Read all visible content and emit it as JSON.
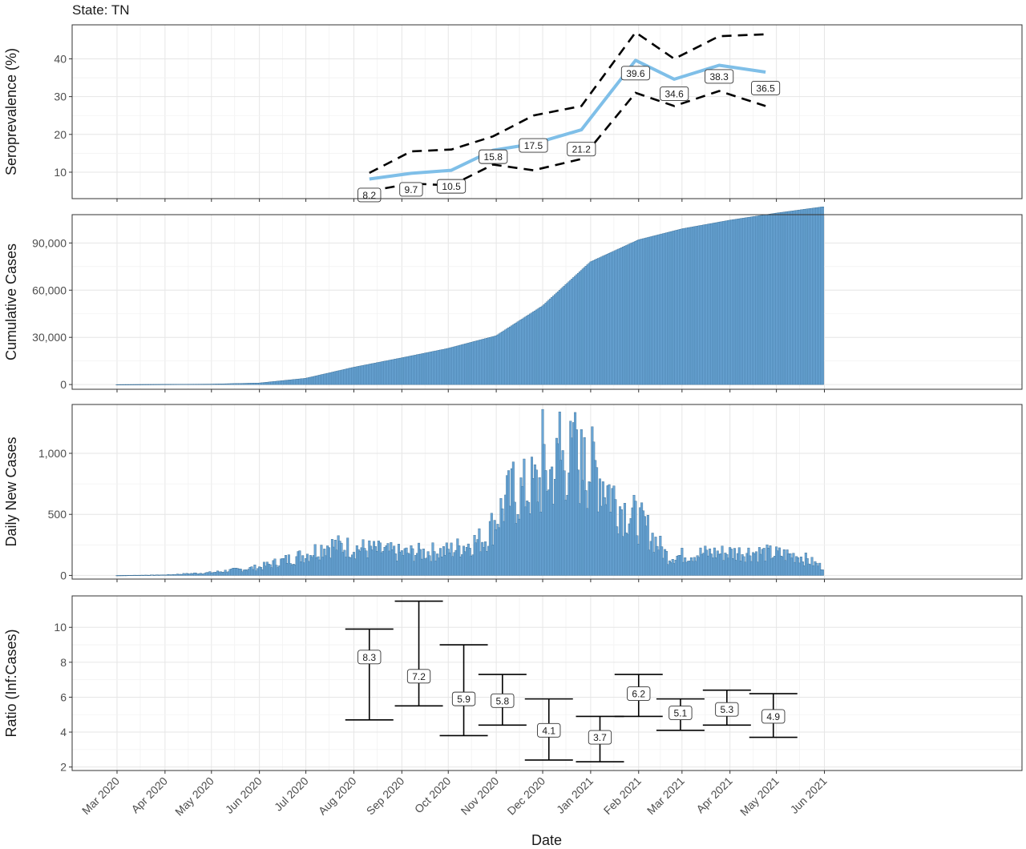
{
  "figure": {
    "state_label": "State: TN",
    "xlabel": "Date",
    "x_ticks": [
      "Mar 2020",
      "Apr 2020",
      "May 2020",
      "Jun 2020",
      "Jul 2020",
      "Aug 2020",
      "Sep 2020",
      "Oct 2020",
      "Nov 2020",
      "Dec 2020",
      "Jan 2021",
      "Feb 2021",
      "Mar 2021",
      "Apr 2021",
      "May 2021",
      "Jun 2021"
    ]
  },
  "chart_data": [
    {
      "type": "line",
      "ylabel": "Seroprevalence (%)",
      "y_ticks": [
        10,
        20,
        30,
        40
      ],
      "ylim": [
        3,
        49
      ],
      "series": [
        {
          "color": "#7fbfe8",
          "points": [
            {
              "date": "2020-08-11",
              "value": 8.2
            },
            {
              "date": "2020-09-07",
              "value": 9.7
            },
            {
              "date": "2020-10-03",
              "value": 10.5
            },
            {
              "date": "2020-10-30",
              "value": 15.8
            },
            {
              "date": "2020-11-25",
              "value": 17.5
            },
            {
              "date": "2020-12-26",
              "value": 21.2
            },
            {
              "date": "2021-01-30",
              "value": 39.6
            },
            {
              "date": "2021-02-24",
              "value": 34.6
            },
            {
              "date": "2021-03-25",
              "value": 38.3
            },
            {
              "date": "2021-04-24",
              "value": 36.5
            }
          ]
        }
      ],
      "upper": [
        9.8,
        15.5,
        16.0,
        19.5,
        25.0,
        27.5,
        47.0,
        40.0,
        46.0,
        46.5
      ],
      "lower": [
        5.0,
        7.0,
        6.5,
        12.0,
        10.5,
        13.5,
        31.0,
        27.5,
        31.5,
        27.5
      ]
    },
    {
      "type": "bar",
      "ylabel": "Cumulative Cases",
      "y_ticks": [
        "0",
        "30,000",
        "60,000",
        "90,000"
      ],
      "y_tick_values": [
        0,
        30000,
        60000,
        90000
      ],
      "ylim": [
        -3000,
        108000
      ],
      "color": "#6aa6d6",
      "date_range": [
        "2020-03-01",
        "2021-05-31"
      ],
      "anchors": [
        {
          "date": "2020-03-01",
          "value": 0
        },
        {
          "date": "2020-05-01",
          "value": 300
        },
        {
          "date": "2020-06-01",
          "value": 1000
        },
        {
          "date": "2020-07-01",
          "value": 4000
        },
        {
          "date": "2020-08-01",
          "value": 11000
        },
        {
          "date": "2020-09-01",
          "value": 17000
        },
        {
          "date": "2020-10-01",
          "value": 23000
        },
        {
          "date": "2020-11-01",
          "value": 31000
        },
        {
          "date": "2020-12-01",
          "value": 50000
        },
        {
          "date": "2021-01-01",
          "value": 78000
        },
        {
          "date": "2021-02-01",
          "value": 92000
        },
        {
          "date": "2021-03-01",
          "value": 99000
        },
        {
          "date": "2021-04-01",
          "value": 104500
        },
        {
          "date": "2021-05-01",
          "value": 109000
        },
        {
          "date": "2021-05-31",
          "value": 113000
        }
      ]
    },
    {
      "type": "bar",
      "ylabel": "Daily New Cases",
      "y_ticks": [
        "0",
        "500",
        "1,000"
      ],
      "y_tick_values": [
        0,
        500,
        1000
      ],
      "ylim": [
        -30,
        1400
      ],
      "color": "#6aa6d6",
      "date_range": [
        "2020-03-01",
        "2021-05-31"
      ],
      "anchors": [
        {
          "date": "2020-03-01",
          "value": 0
        },
        {
          "date": "2020-04-01",
          "value": 5
        },
        {
          "date": "2020-05-01",
          "value": 25
        },
        {
          "date": "2020-06-01",
          "value": 70
        },
        {
          "date": "2020-07-01",
          "value": 180
        },
        {
          "date": "2020-07-15",
          "value": 260
        },
        {
          "date": "2020-08-01",
          "value": 240
        },
        {
          "date": "2020-09-01",
          "value": 190
        },
        {
          "date": "2020-10-01",
          "value": 210
        },
        {
          "date": "2020-10-25",
          "value": 320
        },
        {
          "date": "2020-11-08",
          "value": 650
        },
        {
          "date": "2020-12-01",
          "value": 800
        },
        {
          "date": "2020-12-15",
          "value": 1000
        },
        {
          "date": "2021-01-05",
          "value": 900
        },
        {
          "date": "2021-01-20",
          "value": 600
        },
        {
          "date": "2021-02-05",
          "value": 420
        },
        {
          "date": "2021-02-20",
          "value": 160
        },
        {
          "date": "2021-03-15",
          "value": 190
        },
        {
          "date": "2021-04-15",
          "value": 200
        },
        {
          "date": "2021-05-15",
          "value": 170
        },
        {
          "date": "2021-05-31",
          "value": 70
        }
      ],
      "peaks": [
        {
          "date": "2020-12-01",
          "value": 1360
        },
        {
          "date": "2020-12-12",
          "value": 1340
        },
        {
          "date": "2020-12-22",
          "value": 1335
        },
        {
          "date": "2020-12-28",
          "value": 1130
        },
        {
          "date": "2020-11-12",
          "value": 930
        }
      ]
    },
    {
      "type": "errorbar",
      "ylabel": "Ratio (Inf:Cases)",
      "y_ticks": [
        2,
        4,
        6,
        8,
        10
      ],
      "ylim": [
        1.8,
        11.8
      ],
      "points": [
        {
          "date": "2020-08-11",
          "value": 8.3,
          "low": 4.7,
          "high": 9.9
        },
        {
          "date": "2020-09-12",
          "value": 7.2,
          "low": 5.5,
          "high": 11.5
        },
        {
          "date": "2020-10-11",
          "value": 5.9,
          "low": 3.8,
          "high": 9.0
        },
        {
          "date": "2020-11-05",
          "value": 5.8,
          "low": 4.4,
          "high": 7.3
        },
        {
          "date": "2020-12-05",
          "value": 4.1,
          "low": 2.4,
          "high": 5.9
        },
        {
          "date": "2021-01-07",
          "value": 3.7,
          "low": 2.3,
          "high": 4.9
        },
        {
          "date": "2021-02-01",
          "value": 6.2,
          "low": 4.9,
          "high": 7.3
        },
        {
          "date": "2021-02-28",
          "value": 5.1,
          "low": 4.1,
          "high": 5.9
        },
        {
          "date": "2021-03-30",
          "value": 5.3,
          "low": 4.4,
          "high": 6.4
        },
        {
          "date": "2021-04-29",
          "value": 4.9,
          "low": 3.7,
          "high": 6.2
        }
      ]
    }
  ]
}
